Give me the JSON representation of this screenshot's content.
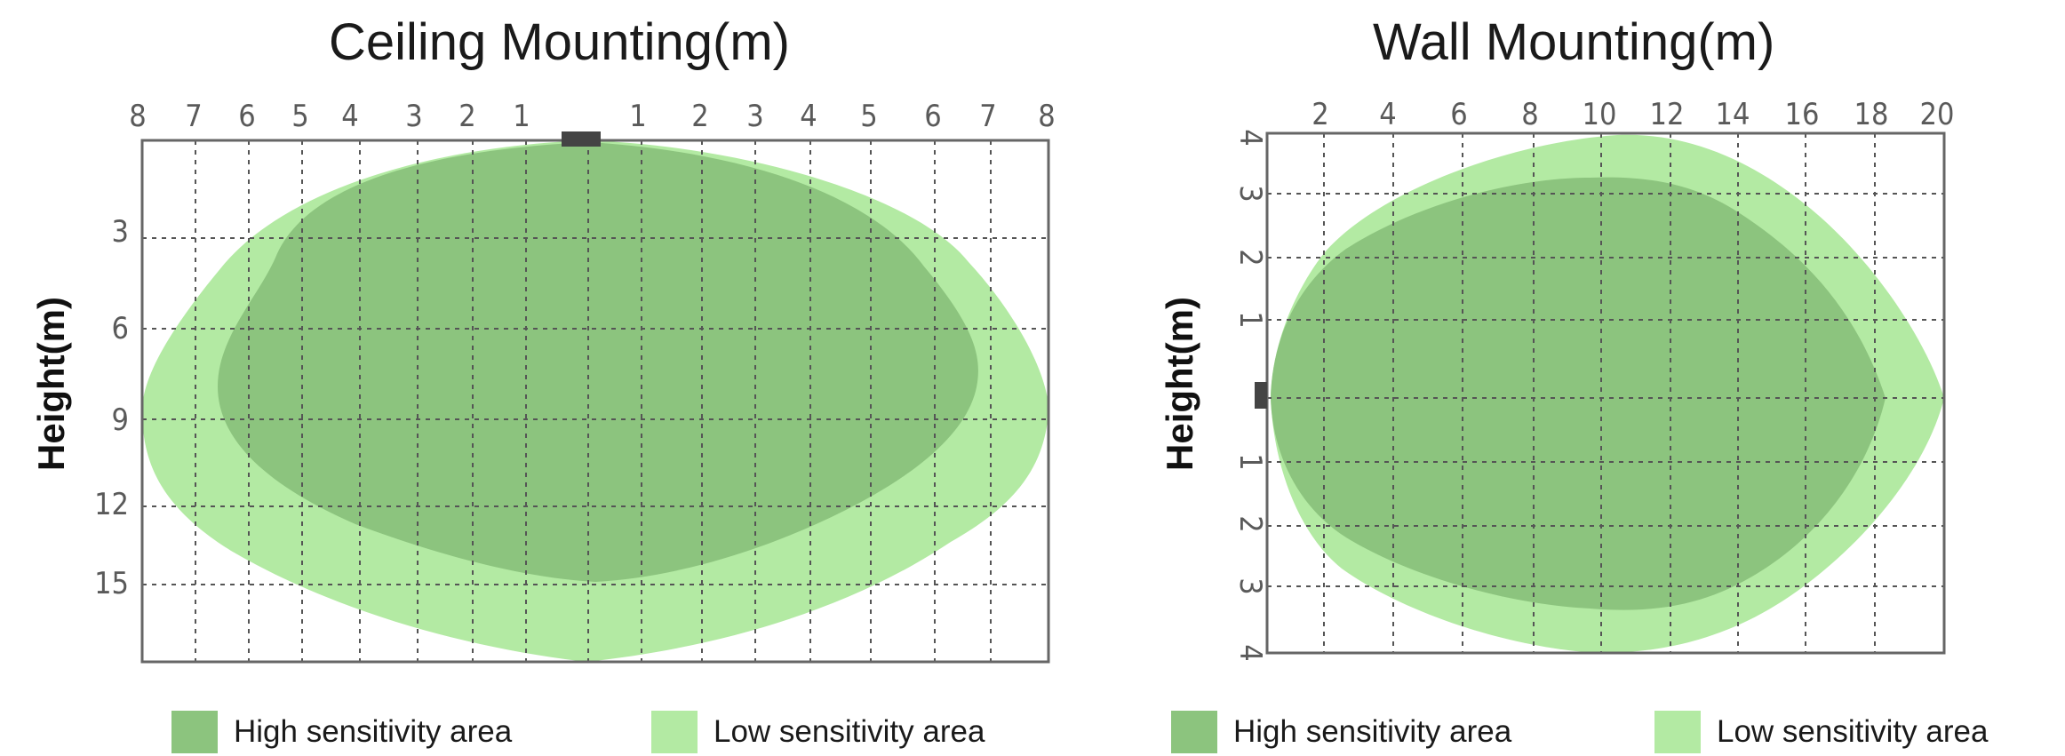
{
  "colors": {
    "high": "#8cc47e",
    "low": "#b3eaa3",
    "grid": "#555555",
    "sensor": "#444444"
  },
  "ceiling": {
    "title": "Ceiling Mounting(m)",
    "top_ticks": [
      "8",
      "7",
      "6",
      "5",
      "4",
      "3",
      "2",
      "1",
      "1",
      "2",
      "3",
      "4",
      "5",
      "6",
      "7",
      "8"
    ],
    "left_ticks": [
      "3",
      "6",
      "9",
      "12",
      "15"
    ],
    "ylabel": "Height(m)",
    "legend_high": "High sensitivity area",
    "legend_low": "Low sensitivity area"
  },
  "wall": {
    "title": "Wall Mounting(m)",
    "top_ticks": [
      "2",
      "4",
      "6",
      "8",
      "10",
      "12",
      "14",
      "16",
      "18",
      "20"
    ],
    "left_ticks": [
      "4",
      "3",
      "2",
      "1",
      "1",
      "2",
      "3",
      "4"
    ],
    "ylabel": "Height(m)",
    "legend_high": "High sensitivity area",
    "legend_low": "Low sensitivity area"
  }
}
